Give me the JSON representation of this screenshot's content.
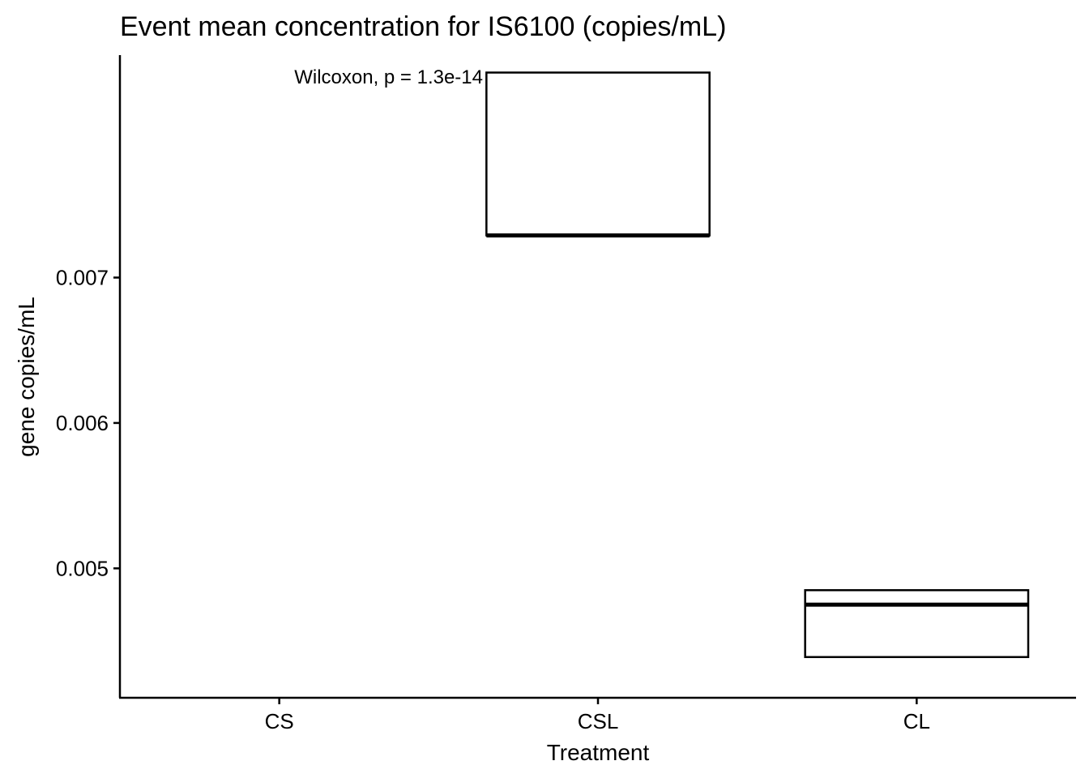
{
  "chart_data": {
    "type": "box",
    "title": "Event mean concentration for IS6100 (copies/mL)",
    "xlabel": "Treatment",
    "ylabel": "gene copies/mL",
    "categories": [
      "CS",
      "CSL",
      "CL"
    ],
    "ylim": [
      0.00411,
      0.00853
    ],
    "yticks": [
      0.005,
      0.006,
      0.007
    ],
    "ytick_labels": [
      "0.005",
      "0.006",
      "0.007"
    ],
    "boxes": [
      {
        "category": "CS",
        "q1": null,
        "median": null,
        "q3": null
      },
      {
        "category": "CSL",
        "q1": 0.00729,
        "median": 0.00729,
        "q3": 0.00841
      },
      {
        "category": "CL",
        "q1": 0.00439,
        "median": 0.00475,
        "q3": 0.00485
      }
    ],
    "annotation": "Wilcoxon, p = 1.3e-14",
    "grid": false,
    "legend": "none"
  }
}
